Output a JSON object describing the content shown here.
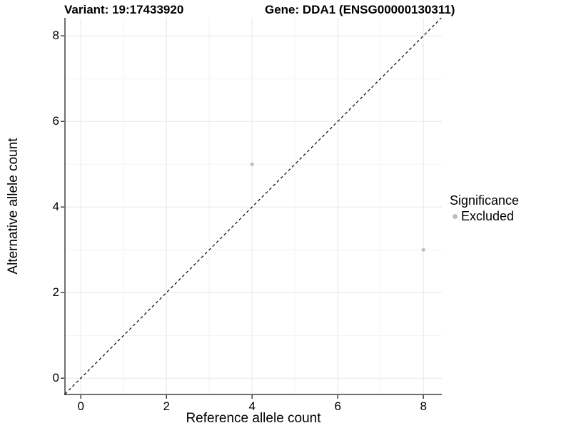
{
  "titles": {
    "left": "Variant: 19:17433920",
    "right": "Gene: DDA1 (ENSG00000130311)"
  },
  "chart_data": {
    "type": "scatter",
    "xlabel": "Reference allele count",
    "ylabel": "Alternative allele count",
    "xlim": [
      -0.37,
      8.43
    ],
    "ylim": [
      -0.38,
      8.42
    ],
    "xticks": [
      0,
      2,
      4,
      6,
      8
    ],
    "yticks": [
      0,
      2,
      4,
      6,
      8
    ],
    "minor_xticks": [
      1,
      3,
      5,
      7
    ],
    "minor_yticks": [
      1,
      3,
      5,
      7
    ],
    "grid": "on",
    "identity_line": {
      "slope": 1,
      "intercept": 0,
      "style": "dashed",
      "color": "#000000"
    },
    "series": [
      {
        "name": "Excluded",
        "color": "#bebebe",
        "marker": "circle",
        "points": [
          [
            4,
            5
          ],
          [
            8,
            3
          ]
        ]
      }
    ],
    "legend": {
      "title": "Significance",
      "position": "right",
      "items": [
        {
          "label": "Excluded",
          "color": "#bebebe"
        }
      ]
    },
    "colors": {
      "grid_major": "#e7e7e7",
      "grid_minor": "#f2f2f2",
      "axis_line": "#404040",
      "tick_mark": "#404040",
      "point": "#bebebe",
      "text": "#000000"
    }
  }
}
